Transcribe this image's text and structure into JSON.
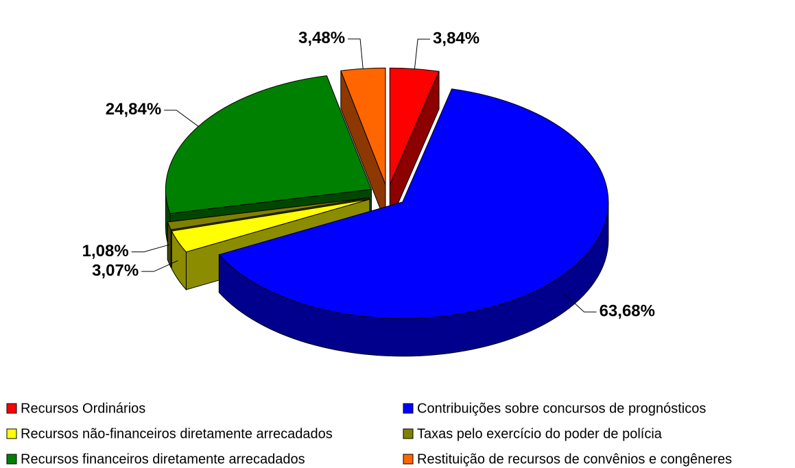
{
  "chart_data": {
    "type": "pie3d",
    "categories": [
      "Recursos Ordinários",
      "Contribuições sobre concursos de prognósticos",
      "Recursos não-financeiros diretamente arrecadados",
      "Taxas pelo exercício do poder de polícia",
      "Recursos financeiros diretamente arrecadados",
      "Restituição de recursos de convênios e congêneres"
    ],
    "values": [
      3.84,
      63.68,
      3.07,
      1.08,
      24.84,
      3.48
    ],
    "value_labels": [
      "3,84%",
      "63,68%",
      "3,07%",
      "1,08%",
      "24,84%",
      "3,48%"
    ],
    "colors": [
      "#ff0000",
      "#0000ff",
      "#ffff00",
      "#808000",
      "#008000",
      "#ff6600"
    ],
    "legend": "bottom"
  }
}
